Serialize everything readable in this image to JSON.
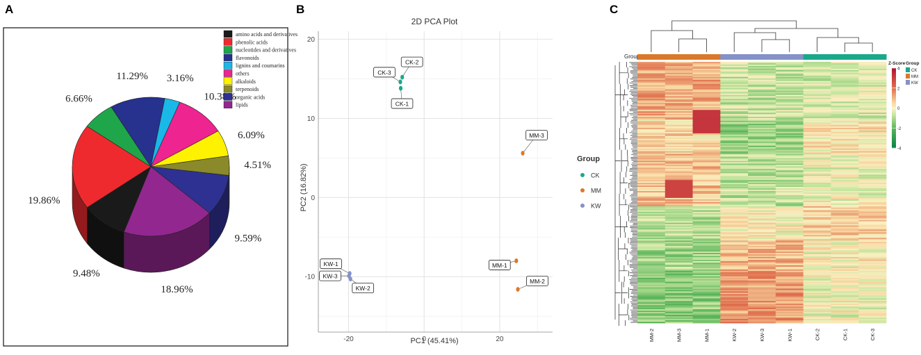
{
  "panels": {
    "a": "A",
    "b": "B",
    "c": "C"
  },
  "chart_data": [
    {
      "type": "pie",
      "panel": "A",
      "title": "",
      "categories": [
        "amino acids and derivatives",
        "phenolic acids",
        "nucleotides and derivatives",
        "flavonoids",
        "lignins and coumarins",
        "others",
        "alkaloids",
        "terpenoids",
        "organic acids",
        "lipids"
      ],
      "values": [
        9.48,
        19.86,
        6.66,
        11.29,
        3.16,
        10.38,
        6.09,
        4.51,
        9.59,
        18.96
      ],
      "labels": [
        "9.48%",
        "19.86%",
        "6.66%",
        "11.29%",
        "3.16%",
        "10.38%",
        "6.09%",
        "4.51%",
        "9.59%",
        "18.96%"
      ],
      "colors": [
        "#1a1a1a",
        "#ee2a2e",
        "#1fa64a",
        "#27318e",
        "#19b8e8",
        "#ee2490",
        "#fff200",
        "#8a8a2a",
        "#2e3192",
        "#92278f"
      ],
      "legend_position": "top-right"
    },
    {
      "type": "scatter",
      "panel": "B",
      "title": "2D PCA Plot",
      "xlabel": "PC1 (45.41%)",
      "ylabel": "PC2 (16.82%)",
      "xlim": [
        -28,
        34
      ],
      "ylim": [
        -17,
        21
      ],
      "xticks": [
        -20,
        0,
        20
      ],
      "yticks": [
        -10,
        0,
        10,
        20
      ],
      "legend_title": "Group",
      "series": [
        {
          "name": "CK",
          "color": "#1aa88a",
          "points": [
            {
              "x": -5.8,
              "y": 15.2,
              "label": "CK-2"
            },
            {
              "x": -6.3,
              "y": 14.6,
              "label": "CK-3"
            },
            {
              "x": -6.2,
              "y": 13.8,
              "label": "CK-1"
            }
          ]
        },
        {
          "name": "MM",
          "color": "#d97a2b",
          "points": [
            {
              "x": 26.1,
              "y": 5.6,
              "label": "MM-3"
            },
            {
              "x": 24.4,
              "y": -8.0,
              "label": "MM-1"
            },
            {
              "x": 24.8,
              "y": -11.6,
              "label": "MM-2"
            }
          ]
        },
        {
          "name": "KW",
          "color": "#8492c8",
          "points": [
            {
              "x": -19.7,
              "y": -9.6,
              "label": "KW-1"
            },
            {
              "x": -19.9,
              "y": -9.9,
              "label": "KW-3"
            },
            {
              "x": -19.5,
              "y": -10.3,
              "label": "KW-2"
            }
          ]
        }
      ],
      "grid": true
    },
    {
      "type": "heatmap",
      "panel": "C",
      "columns": [
        "MM-2",
        "MM-3",
        "MM-1",
        "KW-2",
        "KW-3",
        "KW-1",
        "CK-2",
        "CK-1",
        "CK-3"
      ],
      "column_groups": [
        "MM",
        "MM",
        "MM",
        "KW",
        "KW",
        "KW",
        "CK",
        "CK",
        "CK"
      ],
      "group_label": "Group",
      "group_colors": {
        "CK": "#1aa88a",
        "MM": "#d97a2b",
        "KW": "#8492c8"
      },
      "colorbar_title": "Z-Score",
      "colorbar_ticks": [
        4,
        2,
        0,
        -2,
        -4
      ],
      "legend_title": "Group",
      "legend_items": [
        "CK",
        "MM",
        "KW"
      ]
    }
  ]
}
